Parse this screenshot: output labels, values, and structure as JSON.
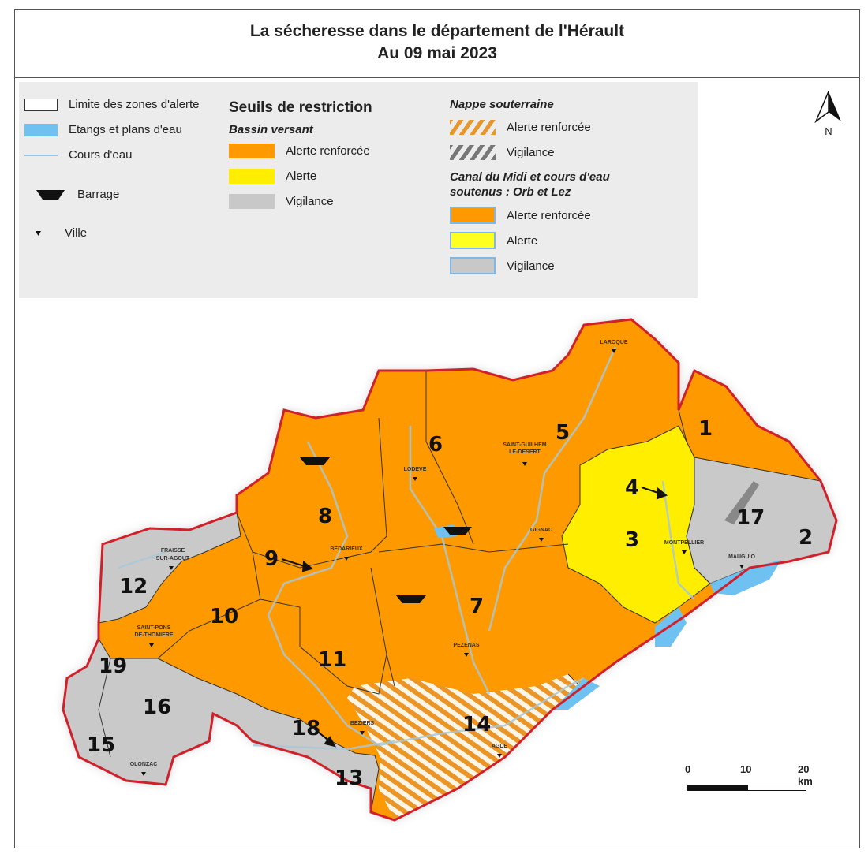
{
  "title": {
    "line1": "La sécheresse dans le département de l'Hérault",
    "line2": "Au 09 mai 2023"
  },
  "legend": {
    "general": [
      {
        "label": "Limite des zones d'alerte",
        "icon": "zone-boundary"
      },
      {
        "label": "Etangs et plans d'eau",
        "icon": "water-body",
        "color": "#6ec1f0"
      },
      {
        "label": "Cours d'eau",
        "icon": "river-line",
        "color": "#8fc8ee"
      },
      {
        "label": "Barrage",
        "icon": "dam-icon"
      },
      {
        "label": "Ville",
        "icon": "city-triangle-icon"
      }
    ],
    "restriction_title": "Seuils de restriction",
    "bassin_title": "Bassin versant",
    "bassin": [
      {
        "label": "Alerte renforcée",
        "color": "#ff9900"
      },
      {
        "label": "Alerte",
        "color": "#ffee00"
      },
      {
        "label": "Vigilance",
        "color": "#c8c8c8"
      }
    ],
    "nappe_title": "Nappe souterraine",
    "nappe": [
      {
        "label": "Alerte renforcée",
        "color": "#e8952a"
      },
      {
        "label": "Vigilance",
        "color": "#777777"
      }
    ],
    "canal_title_line1": "Canal du Midi et cours d'eau",
    "canal_title_line2": "soutenus : Orb et Lez",
    "canal": [
      {
        "label": "Alerte renforcée",
        "color": "#ff9900"
      },
      {
        "label": "Alerte",
        "color": "#ffff22"
      },
      {
        "label": "Vigilance",
        "color": "#c8c8c8"
      }
    ]
  },
  "north": "N",
  "zones": [
    {
      "id": "1",
      "level": "Alerte renforcée"
    },
    {
      "id": "2",
      "level": "Vigilance"
    },
    {
      "id": "3",
      "level": "Alerte"
    },
    {
      "id": "4",
      "level": "Alerte"
    },
    {
      "id": "5",
      "level": "Alerte renforcée"
    },
    {
      "id": "6",
      "level": "Alerte renforcée"
    },
    {
      "id": "7",
      "level": "Alerte renforcée"
    },
    {
      "id": "8",
      "level": "Alerte renforcée"
    },
    {
      "id": "9",
      "level": "Alerte renforcée"
    },
    {
      "id": "10",
      "level": "Alerte renforcée"
    },
    {
      "id": "11",
      "level": "Alerte renforcée"
    },
    {
      "id": "12",
      "level": "Vigilance"
    },
    {
      "id": "13",
      "level": "Vigilance"
    },
    {
      "id": "14",
      "level": "Alerte renforcée (nappe)"
    },
    {
      "id": "15",
      "level": "Vigilance"
    },
    {
      "id": "16",
      "level": "Vigilance"
    },
    {
      "id": "17",
      "level": "Vigilance"
    },
    {
      "id": "18",
      "level": "Vigilance"
    },
    {
      "id": "19",
      "level": "Vigilance"
    }
  ],
  "cities": [
    {
      "l1": "LAROQUE",
      "l2": ""
    },
    {
      "l1": "SAINT-GUILHEM",
      "l2": "LE-DESERT"
    },
    {
      "l1": "LODEVE",
      "l2": ""
    },
    {
      "l1": "GIGNAC",
      "l2": ""
    },
    {
      "l1": "MONTPELLIER",
      "l2": ""
    },
    {
      "l1": "MAUGUIO",
      "l2": ""
    },
    {
      "l1": "BEDARIEUX",
      "l2": ""
    },
    {
      "l1": "FRAISSE",
      "l2": "SUR-AGOUT"
    },
    {
      "l1": "SAINT-PONS",
      "l2": "DE-THOMIERE"
    },
    {
      "l1": "PEZENAS",
      "l2": ""
    },
    {
      "l1": "BEZIERS",
      "l2": ""
    },
    {
      "l1": "AGDE",
      "l2": ""
    },
    {
      "l1": "OLONZAC",
      "l2": ""
    }
  ],
  "scale": {
    "ticks": [
      "0",
      "10",
      "20 km"
    ]
  },
  "colors": {
    "orange": "#ff9900",
    "yellow": "#ffee00",
    "gray": "#c9c9c9",
    "water": "#6ec1f0",
    "border": "#d0202a"
  }
}
